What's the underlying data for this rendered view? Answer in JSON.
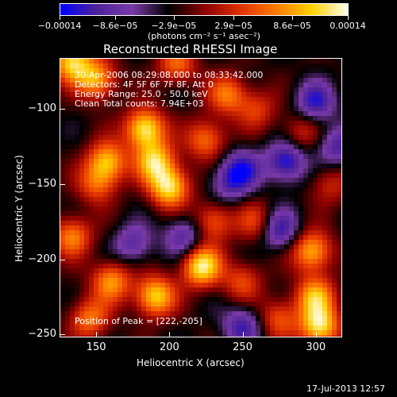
{
  "chart_data": {
    "type": "heatmap",
    "title": "Reconstructed RHESSI Image",
    "xlabel": "Heliocentric X (arcsec)",
    "ylabel": "Heliocentric Y (arcsec)",
    "xlim": [
      125,
      318
    ],
    "ylim": [
      -252,
      -66
    ],
    "x_ticks": [
      150,
      200,
      250,
      300
    ],
    "y_ticks": [
      -100,
      -150,
      -200,
      -250
    ],
    "x_tick_labels": [
      "150",
      "200",
      "250",
      "300"
    ],
    "y_tick_labels": [
      "−100",
      "−150",
      "−200",
      "−250"
    ],
    "colorbar": {
      "ticks": [
        -0.00014,
        -8.6e-05,
        -2.9e-05,
        2.9e-05,
        8.6e-05,
        0.00014
      ],
      "tick_labels": [
        "−0.00014",
        "−8.6e−05",
        "−2.9e−05",
        "2.9e−05",
        "8.6e−05",
        "0.00014"
      ],
      "units": "(photons cm⁻² s⁻¹ asec⁻²)",
      "colors": [
        "#0000ff",
        "#4d2299",
        "#7a3aa8",
        "#000000",
        "#8b0000",
        "#e03000",
        "#ff7a00",
        "#ffd000",
        "#fffff0"
      ]
    },
    "annotations": [
      "30-Apr-2006 08:29:08.000 to 08:33:42.000",
      "Detectors: 4F 5F 6F 7F 8F, Att 0",
      "Energy Range: 25.0 - 50.0 keV",
      "Clean     Total counts: 7.94E+03"
    ],
    "peak_label": "Position of Peak = [222,-205]",
    "peak": [
      222,
      -205
    ],
    "sources": [
      {
        "x": 133,
        "y": -68,
        "v": 0.9
      },
      {
        "x": 150,
        "y": -80,
        "v": 0.75
      },
      {
        "x": 205,
        "y": -70,
        "v": 0.55
      },
      {
        "x": 183,
        "y": -113,
        "v": 1.0
      },
      {
        "x": 157,
        "y": -135,
        "v": 0.8
      },
      {
        "x": 190,
        "y": -135,
        "v": 0.85
      },
      {
        "x": 200,
        "y": -152,
        "v": 0.95
      },
      {
        "x": 225,
        "y": -120,
        "v": 0.6
      },
      {
        "x": 240,
        "y": -90,
        "v": 0.6
      },
      {
        "x": 230,
        "y": -175,
        "v": 0.55
      },
      {
        "x": 260,
        "y": -175,
        "v": 0.45
      },
      {
        "x": 133,
        "y": -185,
        "v": 0.65
      },
      {
        "x": 150,
        "y": -150,
        "v": 0.5
      },
      {
        "x": 222,
        "y": -205,
        "v": 1.0
      },
      {
        "x": 190,
        "y": -225,
        "v": 0.9
      },
      {
        "x": 160,
        "y": -215,
        "v": 0.7
      },
      {
        "x": 250,
        "y": -215,
        "v": 0.45
      },
      {
        "x": 298,
        "y": -195,
        "v": 0.8
      },
      {
        "x": 300,
        "y": -225,
        "v": 0.75
      },
      {
        "x": 275,
        "y": -240,
        "v": 0.5
      },
      {
        "x": 145,
        "y": -240,
        "v": 0.6
      },
      {
        "x": 303,
        "y": -245,
        "v": 0.95
      },
      {
        "x": 310,
        "y": -150,
        "v": 0.35
      },
      {
        "x": 290,
        "y": -115,
        "v": 0.35
      },
      {
        "x": 260,
        "y": -100,
        "v": 0.4
      },
      {
        "x": 250,
        "y": -140,
        "v": -0.55
      },
      {
        "x": 280,
        "y": -135,
        "v": -0.7
      },
      {
        "x": 300,
        "y": -95,
        "v": -0.6
      },
      {
        "x": 275,
        "y": -180,
        "v": -0.6
      },
      {
        "x": 250,
        "y": -245,
        "v": -0.55
      },
      {
        "x": 210,
        "y": -185,
        "v": -0.5
      },
      {
        "x": 175,
        "y": -190,
        "v": -0.45
      },
      {
        "x": 240,
        "y": -150,
        "v": -0.4
      },
      {
        "x": 315,
        "y": -125,
        "v": -0.5
      }
    ],
    "grid": false
  },
  "timestamp": "17-Jul-2013 12:57"
}
